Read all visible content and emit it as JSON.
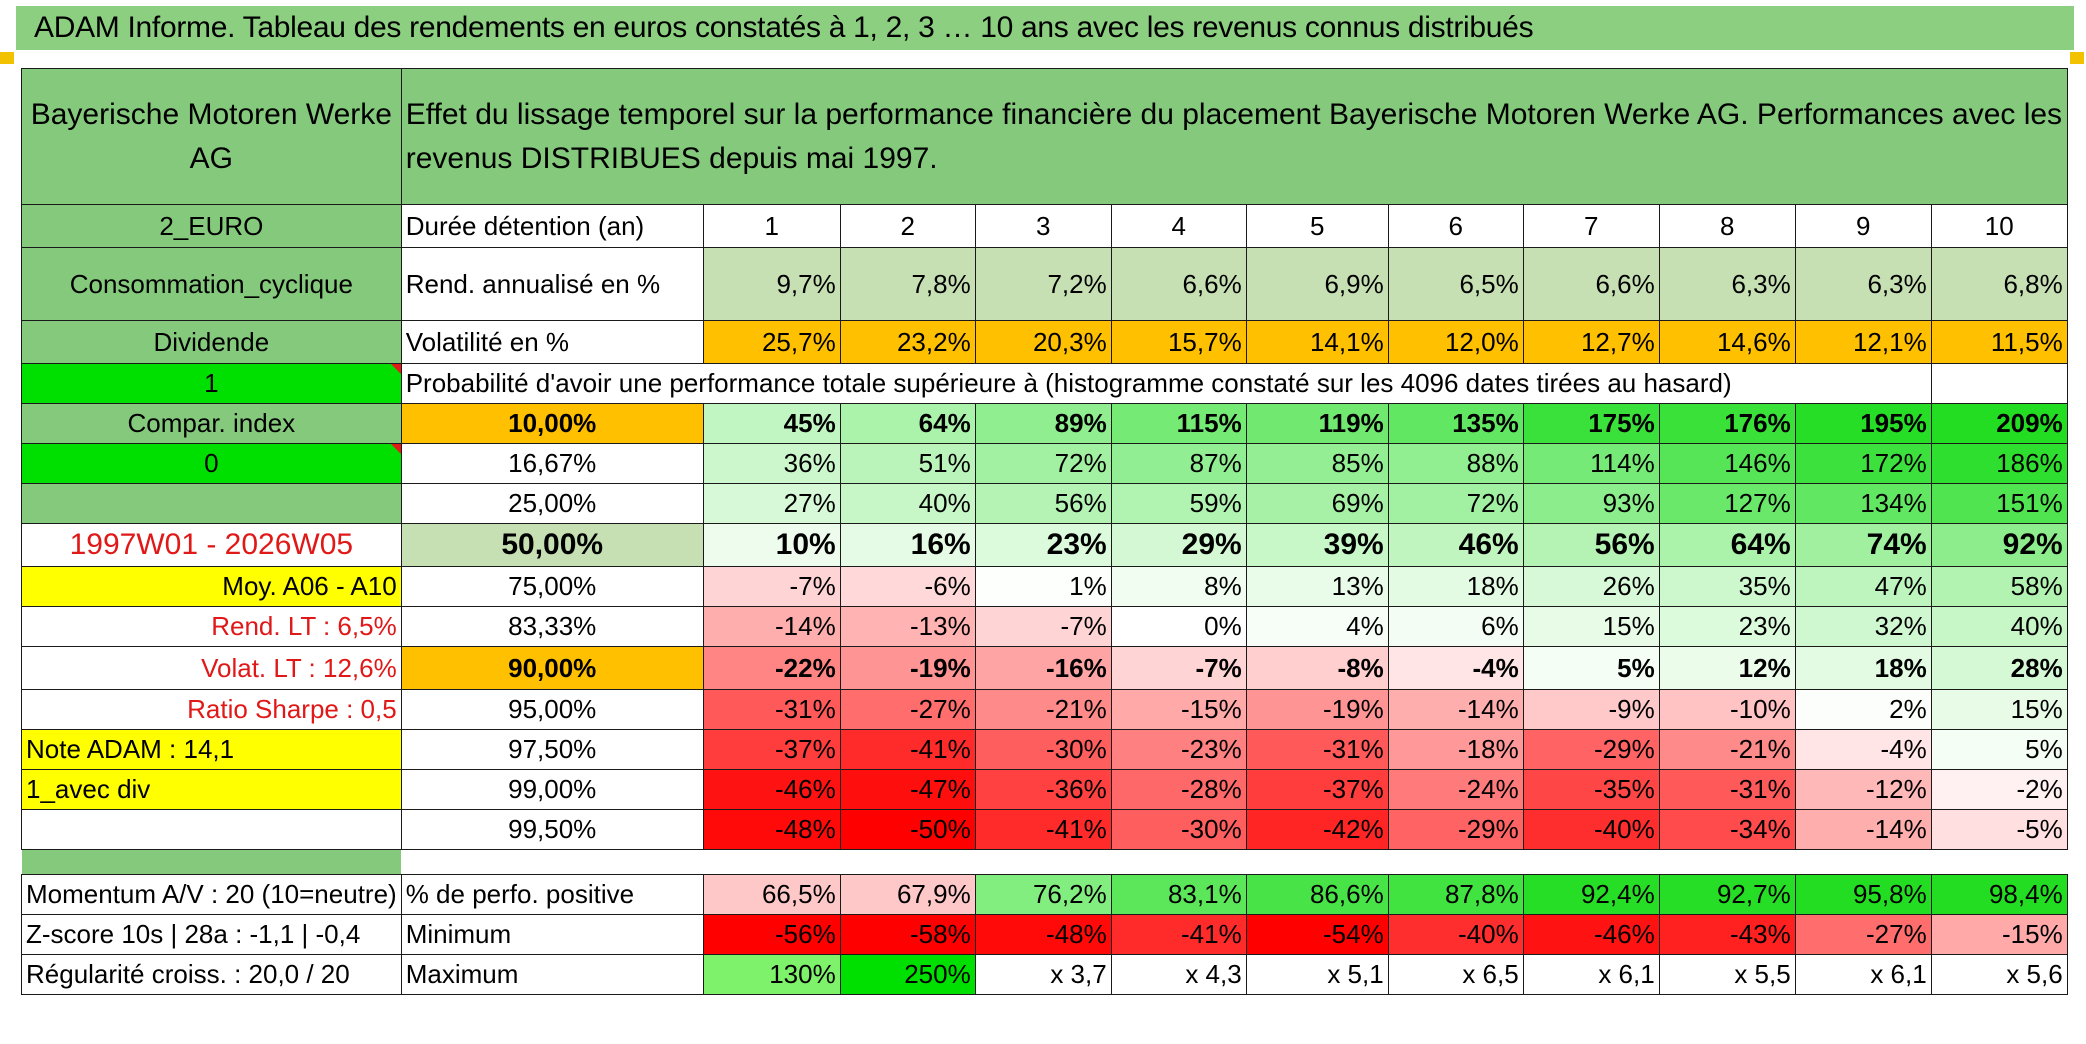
{
  "title": "ADAM Informe. Tableau des rendements en euros constatés à 1, 2, 3 … 10 ans avec les revenus connus distribués",
  "header": {
    "company": "Bayerische Motoren Werke AG",
    "description": "Effet du lissage temporel sur la performance financière du placement Bayerische Motoren Werke AG. Performances avec les revenus DISTRIBUES depuis mai 1997."
  },
  "left": {
    "currency": "2_EURO",
    "sector": "Consommation_cyclique",
    "type": "Dividende",
    "flag1": "1",
    "compar_label": "Compar. index",
    "flag2": "0",
    "empty": "",
    "period": "1997W01 - 2026W05",
    "moy": "Moy. A06 - A10",
    "rend_lt": "Rend. LT :    6,5%",
    "volat_lt": "Volat. LT :    12,6%",
    "sharpe": "Ratio Sharpe :    0,5",
    "note": "Note ADAM : 14,1",
    "avec_div": "1_avec div"
  },
  "bottom_left": {
    "momentum": "Momentum A/V : 20 (10=neutre)",
    "zscore": "Z-score 10s | 28a : -1,1 | -0,4",
    "regularite": "Régularité croiss. : 20,0 / 20"
  },
  "labels": {
    "duree": "Durée détention (an)",
    "rend": "Rend. annualisé en %",
    "volat": "Volatilité en %",
    "proba": "Probabilité d'avoir une performance totale supérieure à (histogramme constaté sur les 4096 dates tirées au hasard)",
    "positive": "% de perfo. positive",
    "minimum": "Minimum",
    "maximum": "Maximum"
  },
  "years": [
    "1",
    "2",
    "3",
    "4",
    "5",
    "6",
    "7",
    "8",
    "9",
    "10"
  ],
  "rend": [
    "9,7%",
    "7,8%",
    "7,2%",
    "6,6%",
    "6,9%",
    "6,5%",
    "6,6%",
    "6,3%",
    "6,3%",
    "6,8%"
  ],
  "volat": [
    "25,7%",
    "23,2%",
    "20,3%",
    "15,7%",
    "14,1%",
    "12,0%",
    "12,7%",
    "14,6%",
    "12,1%",
    "11,5%"
  ],
  "quantiles": [
    {
      "label": "10,00%",
      "values": [
        "45%",
        "64%",
        "89%",
        "115%",
        "119%",
        "135%",
        "175%",
        "176%",
        "195%",
        "209%"
      ]
    },
    {
      "label": "16,67%",
      "values": [
        "36%",
        "51%",
        "72%",
        "87%",
        "85%",
        "88%",
        "114%",
        "146%",
        "172%",
        "186%"
      ]
    },
    {
      "label": "25,00%",
      "values": [
        "27%",
        "40%",
        "56%",
        "59%",
        "69%",
        "72%",
        "93%",
        "127%",
        "134%",
        "151%"
      ]
    },
    {
      "label": "50,00%",
      "values": [
        "10%",
        "16%",
        "23%",
        "29%",
        "39%",
        "46%",
        "56%",
        "64%",
        "74%",
        "92%"
      ]
    },
    {
      "label": "75,00%",
      "values": [
        "-7%",
        "-6%",
        "1%",
        "8%",
        "13%",
        "18%",
        "26%",
        "35%",
        "47%",
        "58%"
      ]
    },
    {
      "label": "83,33%",
      "values": [
        "-14%",
        "-13%",
        "-7%",
        "0%",
        "4%",
        "6%",
        "15%",
        "23%",
        "32%",
        "40%"
      ]
    },
    {
      "label": "90,00%",
      "values": [
        "-22%",
        "-19%",
        "-16%",
        "-7%",
        "-8%",
        "-4%",
        "5%",
        "12%",
        "18%",
        "28%"
      ]
    },
    {
      "label": "95,00%",
      "values": [
        "-31%",
        "-27%",
        "-21%",
        "-15%",
        "-19%",
        "-14%",
        "-9%",
        "-10%",
        "2%",
        "15%"
      ]
    },
    {
      "label": "97,50%",
      "values": [
        "-37%",
        "-41%",
        "-30%",
        "-23%",
        "-31%",
        "-18%",
        "-29%",
        "-21%",
        "-4%",
        "5%"
      ]
    },
    {
      "label": "99,00%",
      "values": [
        "-46%",
        "-47%",
        "-36%",
        "-28%",
        "-37%",
        "-24%",
        "-35%",
        "-31%",
        "-12%",
        "-2%"
      ]
    },
    {
      "label": "99,50%",
      "values": [
        "-48%",
        "-50%",
        "-41%",
        "-30%",
        "-42%",
        "-29%",
        "-40%",
        "-34%",
        "-14%",
        "-5%"
      ]
    }
  ],
  "positive": [
    "66,5%",
    "67,9%",
    "76,2%",
    "83,1%",
    "86,6%",
    "87,8%",
    "92,4%",
    "92,7%",
    "95,8%",
    "98,4%"
  ],
  "minimum": [
    "-56%",
    "-58%",
    "-48%",
    "-41%",
    "-54%",
    "-40%",
    "-46%",
    "-43%",
    "-27%",
    "-15%"
  ],
  "maximum": [
    "130%",
    "250%",
    "x 3,7",
    "x 4,3",
    "x 5,1",
    "x 6,5",
    "x 6,1",
    "x 5,5",
    "x 6,1",
    "x 5,6"
  ],
  "colors": {
    "header_green": "#85c97c",
    "light_green": "#c6e0b4",
    "orange": "#ffc000",
    "bright_green": "#00e000",
    "yellow": "#ffff00",
    "label_red": "#e01818",
    "heat_positive": "#22dd22",
    "heat_negative": "#ff0000"
  }
}
